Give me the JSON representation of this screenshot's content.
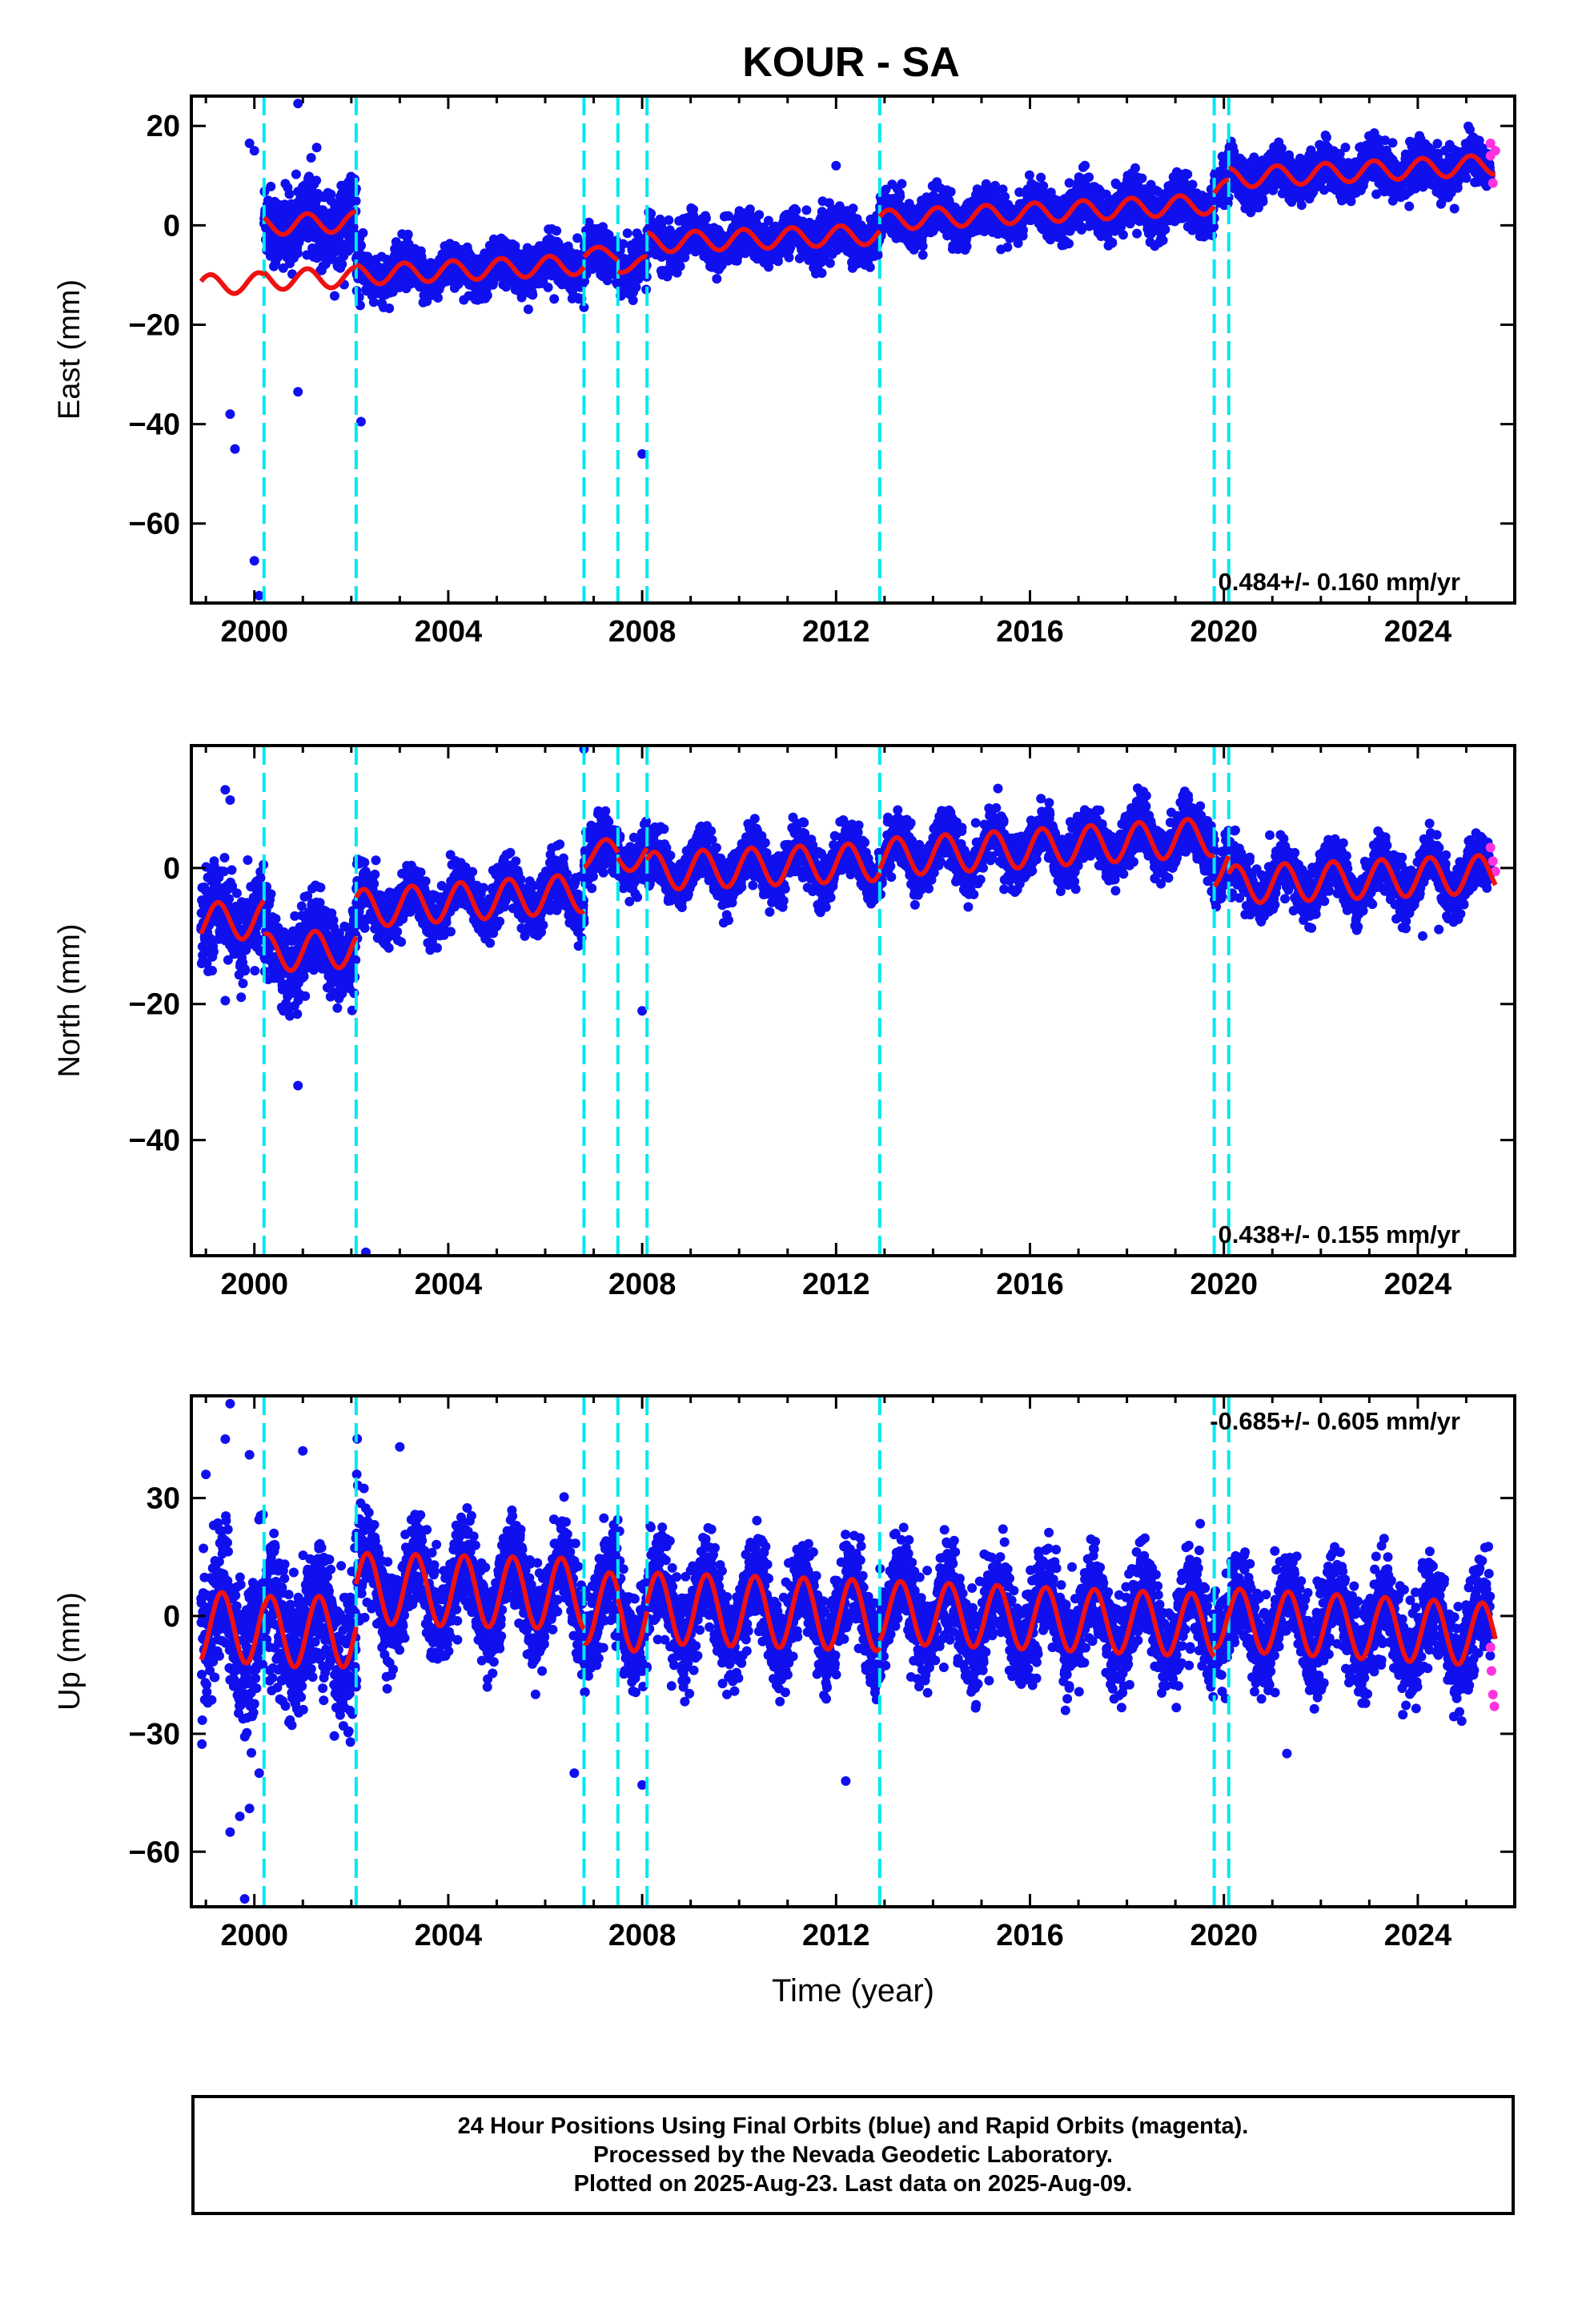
{
  "title": "KOUR - SA",
  "x_axis_label": "Time (year)",
  "colors": {
    "final_orbits": "#1010ee",
    "rapid_orbits": "#ff33dd",
    "model": "#ee1111",
    "events": "#00e8f0",
    "axes": "#000000"
  },
  "footer": {
    "line1": "24 Hour Positions Using Final Orbits (blue) and Rapid Orbits (magenta).",
    "line2": "Processed by the Nevada Geodetic Laboratory.",
    "line3": "Plotted on 2025-Aug-23. Last data on 2025-Aug-09."
  },
  "chart_data": [
    {
      "type": "scatter",
      "component": "East",
      "ylabel": "East (mm)",
      "xlabel": "",
      "xlim": [
        1998.7,
        2026.0
      ],
      "ylim": [
        -76,
        26
      ],
      "yticks": [
        20,
        0,
        -20,
        -40,
        -60
      ],
      "xticks": [
        2000,
        2004,
        2008,
        2012,
        2016,
        2020,
        2024
      ],
      "velocity_label": "0.484+/- 0.160 mm/yr",
      "velocity_position": "bottom-right",
      "event_lines": [
        2000.2,
        2002.1,
        2006.8,
        2007.5,
        2008.1,
        2012.9,
        2019.8,
        2020.1
      ],
      "model_segments": [
        {
          "start": 2000.2,
          "end": 2002.1,
          "offset": 0,
          "trend": 0.4,
          "amp": 2.0,
          "phase": 1.0
        },
        {
          "start": 1998.9,
          "end": 2000.2,
          "offset": -12,
          "trend": 0.4,
          "amp": 2.0,
          "phase": 1.0
        },
        {
          "start": 2000.2,
          "end": 2002.1,
          "offset": -11,
          "trend": 0.3,
          "amp": 2.0,
          "phase": 1.0
        },
        {
          "start": 2002.1,
          "end": 2006.8,
          "offset": -10,
          "trend": 0.45,
          "amp": 2.0,
          "phase": 1.0
        },
        {
          "start": 2006.8,
          "end": 2007.5,
          "offset": -6,
          "trend": 0.4,
          "amp": 1.5,
          "phase": 1.0
        },
        {
          "start": 2007.5,
          "end": 2008.1,
          "offset": -8,
          "trend": 0.4,
          "amp": 1.5,
          "phase": 1.0
        },
        {
          "start": 2008.1,
          "end": 2012.9,
          "offset": -3.5,
          "trend": 0.35,
          "amp": 2.0,
          "phase": 1.0
        },
        {
          "start": 2012.9,
          "end": 2019.8,
          "offset": 1,
          "trend": 0.48,
          "amp": 2.0,
          "phase": 1.0
        },
        {
          "start": 2019.8,
          "end": 2020.1,
          "offset": 7,
          "trend": 0.48,
          "amp": 2.0,
          "phase": 1.0
        },
        {
          "start": 2020.1,
          "end": 2025.6,
          "offset": 9.5,
          "trend": 0.5,
          "amp": 2.0,
          "phase": 1.0
        }
      ],
      "scatter_sigma": 2.6,
      "scatter_sigma_early": 4.5,
      "outliers": [
        [
          1999.9,
          16.5
        ],
        [
          2000.0,
          15
        ],
        [
          2000.9,
          24.5
        ],
        [
          2000.0,
          -67.5
        ],
        [
          2000.1,
          -74.5
        ],
        [
          1999.6,
          -45
        ],
        [
          1999.5,
          -38
        ],
        [
          2000.9,
          -33.5
        ],
        [
          2002.2,
          -39.5
        ],
        [
          2006.8,
          -16.5
        ],
        [
          2008.0,
          -46
        ],
        [
          2012.0,
          12
        ]
      ],
      "rapid_points": [
        [
          2025.5,
          16.5
        ],
        [
          2025.5,
          14
        ],
        [
          2025.55,
          8.5
        ],
        [
          2025.6,
          15
        ]
      ]
    },
    {
      "type": "scatter",
      "component": "North",
      "ylabel": "North (mm)",
      "xlabel": "",
      "xlim": [
        1998.7,
        2026.0
      ],
      "ylim": [
        -57,
        18
      ],
      "yticks": [
        0,
        -20,
        -40
      ],
      "xticks": [
        2000,
        2004,
        2008,
        2012,
        2016,
        2020,
        2024
      ],
      "velocity_label": "0.438+/- 0.155 mm/yr",
      "velocity_position": "bottom-right",
      "event_lines": [
        2000.2,
        2002.1,
        2006.8,
        2007.5,
        2008.1,
        2012.9,
        2019.8,
        2020.1
      ],
      "model_segments": [
        {
          "start": 1998.9,
          "end": 2000.2,
          "offset": -8,
          "trend": 0.4,
          "amp": 2.8,
          "phase": 0.0
        },
        {
          "start": 2000.2,
          "end": 2002.1,
          "offset": -12.5,
          "trend": 0.4,
          "amp": 2.8,
          "phase": 0.0
        },
        {
          "start": 2002.1,
          "end": 2006.8,
          "offset": -6,
          "trend": 0.5,
          "amp": 2.8,
          "phase": 0.0
        },
        {
          "start": 2006.8,
          "end": 2007.5,
          "offset": 2,
          "trend": 0.4,
          "amp": 2.0,
          "phase": 0.0
        },
        {
          "start": 2007.5,
          "end": 2008.1,
          "offset": 1.5,
          "trend": 0.4,
          "amp": 2.0,
          "phase": 0.0
        },
        {
          "start": 2008.1,
          "end": 2012.9,
          "offset": -0.5,
          "trend": 0.3,
          "amp": 2.8,
          "phase": 0.0
        },
        {
          "start": 2012.9,
          "end": 2019.8,
          "offset": 1.5,
          "trend": 0.45,
          "amp": 2.8,
          "phase": 0.0
        },
        {
          "start": 2019.8,
          "end": 2020.1,
          "offset": 0,
          "trend": 0.3,
          "amp": 2.8,
          "phase": 0.0
        },
        {
          "start": 2020.1,
          "end": 2025.6,
          "offset": -2.5,
          "trend": 0.3,
          "amp": 2.8,
          "phase": 0.0
        }
      ],
      "scatter_sigma": 2.2,
      "scatter_sigma_early": 3.6,
      "outliers": [
        [
          1999.4,
          11.5
        ],
        [
          1999.5,
          10
        ],
        [
          2000.9,
          -32
        ],
        [
          2002.3,
          -56.5
        ],
        [
          2006.8,
          17.5
        ],
        [
          2008.0,
          -21
        ],
        [
          2000.6,
          -21
        ],
        [
          1999.4,
          -19.5
        ],
        [
          2024.1,
          -10
        ]
      ],
      "rapid_points": [
        [
          2025.5,
          3
        ],
        [
          2025.55,
          1
        ],
        [
          2025.6,
          -0.5
        ]
      ]
    },
    {
      "type": "scatter",
      "component": "Up",
      "ylabel": "Up (mm)",
      "xlabel": "Time (year)",
      "xlim": [
        1998.7,
        2026.0
      ],
      "ylim": [
        -74,
        56
      ],
      "yticks": [
        30,
        0,
        -30,
        -60
      ],
      "xticks": [
        2000,
        2004,
        2008,
        2012,
        2016,
        2020,
        2024
      ],
      "velocity_label": "-0.685+/- 0.605 mm/yr",
      "velocity_position": "top-right",
      "event_lines": [
        2000.2,
        2002.1,
        2006.8,
        2007.5,
        2008.1,
        2012.9,
        2019.8,
        2020.1
      ],
      "model_segments": [
        {
          "start": 1998.9,
          "end": 2000.2,
          "offset": -3,
          "trend": 0.0,
          "amp": 9.0,
          "phase": -0.5
        },
        {
          "start": 2000.2,
          "end": 2002.1,
          "offset": -4,
          "trend": 0.0,
          "amp": 9.0,
          "phase": -0.5
        },
        {
          "start": 2002.1,
          "end": 2006.8,
          "offset": 7,
          "trend": -0.3,
          "amp": 9.0,
          "phase": -0.5
        },
        {
          "start": 2006.8,
          "end": 2007.5,
          "offset": 2,
          "trend": 0.0,
          "amp": 9.0,
          "phase": -0.5
        },
        {
          "start": 2007.5,
          "end": 2008.1,
          "offset": 0,
          "trend": 0.0,
          "amp": 9.0,
          "phase": -0.5
        },
        {
          "start": 2008.1,
          "end": 2012.9,
          "offset": 2,
          "trend": -0.4,
          "amp": 9.0,
          "phase": -0.5
        },
        {
          "start": 2012.9,
          "end": 2019.8,
          "offset": 1,
          "trend": -0.5,
          "amp": 8.0,
          "phase": -0.5
        },
        {
          "start": 2019.8,
          "end": 2020.1,
          "offset": 0,
          "trend": -0.5,
          "amp": 8.0,
          "phase": -0.5
        },
        {
          "start": 2020.1,
          "end": 2025.6,
          "offset": -1,
          "trend": -0.7,
          "amp": 8.0,
          "phase": -0.5
        }
      ],
      "scatter_sigma": 7.0,
      "scatter_sigma_early": 11.0,
      "outliers": [
        [
          1999.5,
          54
        ],
        [
          1999.9,
          41
        ],
        [
          1999.0,
          36
        ],
        [
          1999.4,
          45
        ],
        [
          2001.0,
          42
        ],
        [
          2003.0,
          43
        ],
        [
          1999.5,
          -55
        ],
        [
          1999.7,
          -51
        ],
        [
          1999.9,
          -49
        ],
        [
          1999.8,
          -72
        ],
        [
          2000.1,
          -40
        ],
        [
          2006.6,
          -40
        ],
        [
          2008.0,
          -43
        ],
        [
          2012.2,
          -42
        ],
        [
          2021.3,
          -35
        ]
      ],
      "rapid_points": [
        [
          2025.5,
          -8
        ],
        [
          2025.52,
          -14
        ],
        [
          2025.55,
          -20
        ],
        [
          2025.58,
          -23
        ]
      ]
    }
  ]
}
